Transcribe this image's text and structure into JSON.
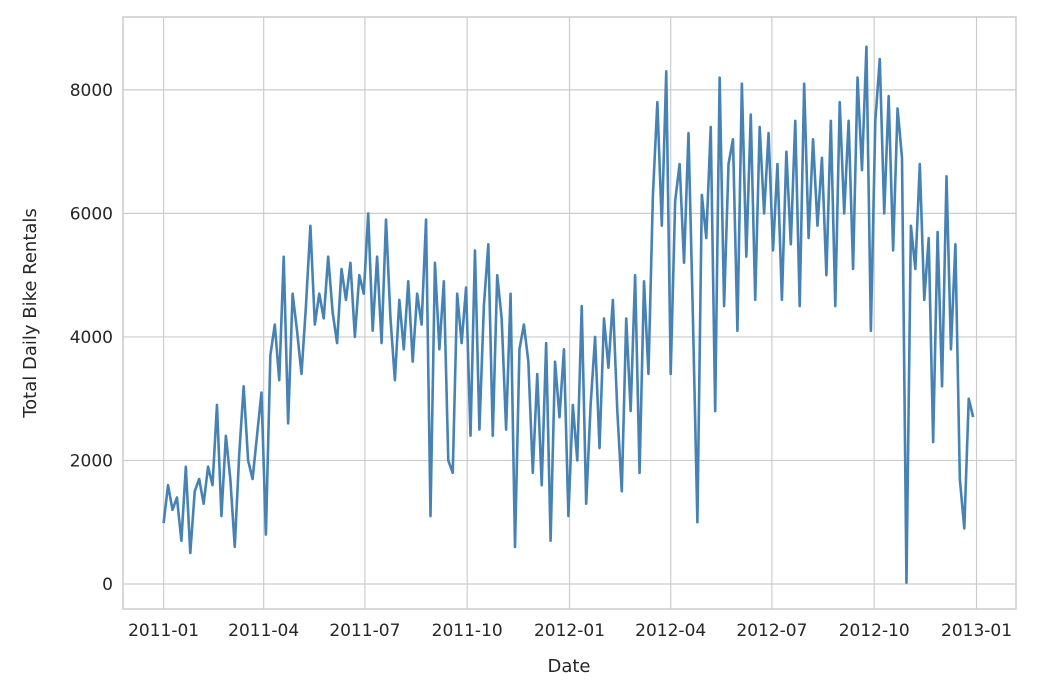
{
  "chart_data": {
    "type": "line",
    "x_label": "Date",
    "y_label": "Total Daily Bike Rentals",
    "x": [
      0,
      4,
      8,
      12,
      16,
      20,
      24,
      28,
      32,
      36,
      40,
      44,
      48,
      52,
      56,
      60,
      64,
      68,
      72,
      76,
      80,
      84,
      88,
      92,
      96,
      100,
      104,
      108,
      112,
      116,
      120,
      124,
      128,
      132,
      136,
      140,
      144,
      148,
      152,
      156,
      160,
      164,
      168,
      172,
      176,
      180,
      184,
      188,
      192,
      196,
      200,
      204,
      208,
      212,
      216,
      220,
      224,
      228,
      232,
      236,
      240,
      244,
      248,
      252,
      256,
      260,
      264,
      268,
      272,
      276,
      280,
      284,
      288,
      292,
      296,
      300,
      304,
      308,
      312,
      316,
      320,
      324,
      328,
      332,
      336,
      340,
      344,
      348,
      352,
      356,
      360,
      364,
      368,
      372,
      376,
      380,
      384,
      388,
      392,
      396,
      400,
      404,
      408,
      412,
      416,
      420,
      424,
      428,
      432,
      436,
      440,
      444,
      448,
      452,
      456,
      460,
      464,
      468,
      472,
      476,
      480,
      484,
      488,
      492,
      496,
      500,
      504,
      508,
      512,
      516,
      520,
      524,
      528,
      532,
      536,
      540,
      544,
      548,
      552,
      556,
      560,
      564,
      568,
      572,
      576,
      580,
      584,
      588,
      592,
      596,
      600,
      604,
      608,
      612,
      616,
      620,
      624,
      628,
      632,
      636,
      640,
      644,
      648,
      652,
      656,
      660,
      664,
      668,
      672,
      676,
      680,
      684,
      688,
      692,
      696,
      700,
      704,
      708,
      712,
      716,
      720,
      724,
      728
    ],
    "series": [
      {
        "name": "Total Daily Bike Rentals",
        "color": "#4682b4",
        "values": [
          985,
          1600,
          1200,
          1400,
          700,
          1900,
          500,
          1500,
          1700,
          1300,
          1900,
          1600,
          2900,
          1100,
          2400,
          1700,
          600,
          2100,
          3200,
          2000,
          1700,
          2400,
          3100,
          800,
          3700,
          4200,
          3300,
          5300,
          2600,
          4700,
          4100,
          3400,
          4500,
          5800,
          4200,
          4700,
          4300,
          5300,
          4400,
          3900,
          5100,
          4600,
          5200,
          4000,
          5000,
          4700,
          6000,
          4100,
          5300,
          3900,
          5900,
          4300,
          3300,
          4600,
          3800,
          4900,
          3600,
          4700,
          4200,
          5900,
          1100,
          5200,
          3800,
          4900,
          2000,
          1800,
          4700,
          3900,
          4800,
          2400,
          5400,
          2500,
          4500,
          5500,
          2400,
          5000,
          4300,
          2500,
          4700,
          600,
          3800,
          4200,
          3600,
          1800,
          3400,
          1600,
          3900,
          700,
          3600,
          2700,
          3800,
          1100,
          2900,
          2000,
          4500,
          1300,
          2900,
          4000,
          2200,
          4300,
          3500,
          4600,
          2800,
          1500,
          4300,
          2800,
          5000,
          1800,
          4900,
          3400,
          6300,
          7800,
          5800,
          8300,
          3400,
          6200,
          6800,
          5200,
          7300,
          4300,
          1000,
          6300,
          5600,
          7400,
          2800,
          8200,
          4500,
          6800,
          7200,
          4100,
          8100,
          5300,
          7600,
          4600,
          7400,
          6000,
          7300,
          5400,
          6800,
          4600,
          7000,
          5500,
          7500,
          4500,
          8100,
          5600,
          7200,
          5800,
          6900,
          5000,
          7500,
          4500,
          7800,
          6000,
          7500,
          5100,
          8200,
          6700,
          8700,
          4100,
          7500,
          8500,
          6000,
          7900,
          5400,
          7700,
          6900,
          22,
          5800,
          5100,
          6800,
          4600,
          5600,
          2300,
          5700,
          3200,
          6600,
          3800,
          5500,
          1700,
          900,
          3000,
          2700
        ]
      }
    ],
    "xlim": [
      -36.5,
      766.5
    ],
    "xticks": [
      {
        "value": 0,
        "label": "2011-01"
      },
      {
        "value": 90,
        "label": "2011-04"
      },
      {
        "value": 181,
        "label": "2011-07"
      },
      {
        "value": 273,
        "label": "2011-10"
      },
      {
        "value": 365,
        "label": "2012-01"
      },
      {
        "value": 456,
        "label": "2012-04"
      },
      {
        "value": 547,
        "label": "2012-07"
      },
      {
        "value": 639,
        "label": "2012-10"
      },
      {
        "value": 731,
        "label": "2013-01"
      }
    ],
    "ylim": [
      -405,
      9180
    ],
    "yticks": [
      0,
      2000,
      4000,
      6000,
      8000
    ],
    "grid": true
  }
}
